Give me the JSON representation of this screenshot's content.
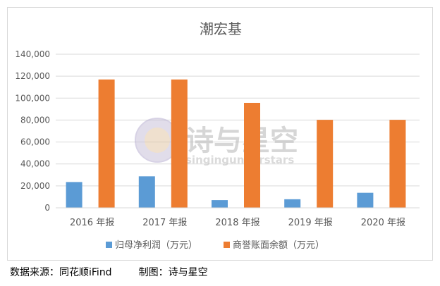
{
  "chart_data": {
    "type": "bar",
    "title": "潮宏基",
    "categories": [
      "2016 年报",
      "2017 年报",
      "2018 年报",
      "2019 年报",
      "2020 年报"
    ],
    "series": [
      {
        "name": "归母净利润（万元）",
        "color": "#5b9bd5",
        "values": [
          23500,
          28700,
          7000,
          7800,
          13700
        ]
      },
      {
        "name": "商誉账面余额（万元）",
        "color": "#ed7d31",
        "values": [
          117000,
          117000,
          95700,
          80200,
          80200
        ]
      }
    ],
    "yticks": [
      "0",
      "20,000",
      "40,000",
      "60,000",
      "80,000",
      "100,000",
      "120,000",
      "140,000"
    ],
    "ylim": [
      0,
      140000
    ],
    "grid": true,
    "legend_position": "bottom"
  },
  "watermark": {
    "title": "诗与星空",
    "subtitle": "singingunderstars"
  },
  "source": {
    "data_source": "数据来源：同花顺iFind",
    "made_by": "制图：诗与星空"
  }
}
